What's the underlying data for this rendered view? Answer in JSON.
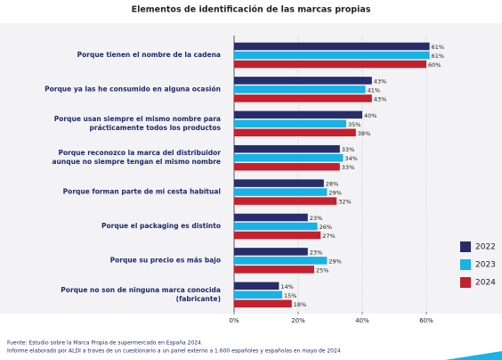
{
  "chart_data": {
    "type": "hbar",
    "title": "Elementos de identificación de las marcas propias",
    "categories": [
      [
        "Porque tienen el nombre de la cadena"
      ],
      [
        "Porque ya las he consumido en alguna ocasión"
      ],
      [
        "Porque usan siempre el mismo nombre para",
        "prácticamente todos los productos"
      ],
      [
        "Porque reconozco la marca del distribuidor",
        "aunque no siempre tengan el mismo nombre"
      ],
      [
        "Porque forman parte de mi cesta habitual"
      ],
      [
        "Porque el packaging es distinto"
      ],
      [
        "Porque su precio es más bajo"
      ],
      [
        "Porque no son de ninguna marca conocida",
        "(fabricante)"
      ]
    ],
    "series": [
      {
        "name": "2022",
        "color": "#272c6b",
        "values": [
          61,
          43,
          40,
          33,
          28,
          23,
          23,
          14
        ],
        "value_labels": [
          "61%",
          "43%",
          "40%",
          "33%",
          "28%",
          "23%",
          "23%",
          "14%"
        ]
      },
      {
        "name": "2023",
        "color": "#17b2e6",
        "values": [
          61,
          41,
          35,
          34,
          29,
          26,
          29,
          15
        ],
        "value_labels": [
          "61%",
          "41%",
          "35%",
          "34%",
          "29%",
          "26%",
          "29%",
          "15%"
        ]
      },
      {
        "name": "2024",
        "color": "#c4202d",
        "values": [
          60,
          43,
          38,
          33,
          32,
          27,
          25,
          18
        ],
        "value_labels": [
          "60%",
          "43%",
          "38%",
          "33%",
          "32%",
          "27%",
          "25%",
          "18%"
        ]
      }
    ],
    "xlim": [
      0,
      80
    ],
    "xticks": [
      {
        "value": 0,
        "label": "0%"
      },
      {
        "value": 20,
        "label": "20%"
      },
      {
        "value": 40,
        "label": "40%"
      },
      {
        "value": 60,
        "label": "60%"
      }
    ],
    "grid": true,
    "legend": "right",
    "footnotes": [
      "Fuente: Estudio sobre la Marca Propia de supermercado en España 2024.",
      "Informe elaborado por ALDI a través de un cuestionario a un panel externo a 1.600 españoles y españolas en mayo de 2024"
    ]
  }
}
